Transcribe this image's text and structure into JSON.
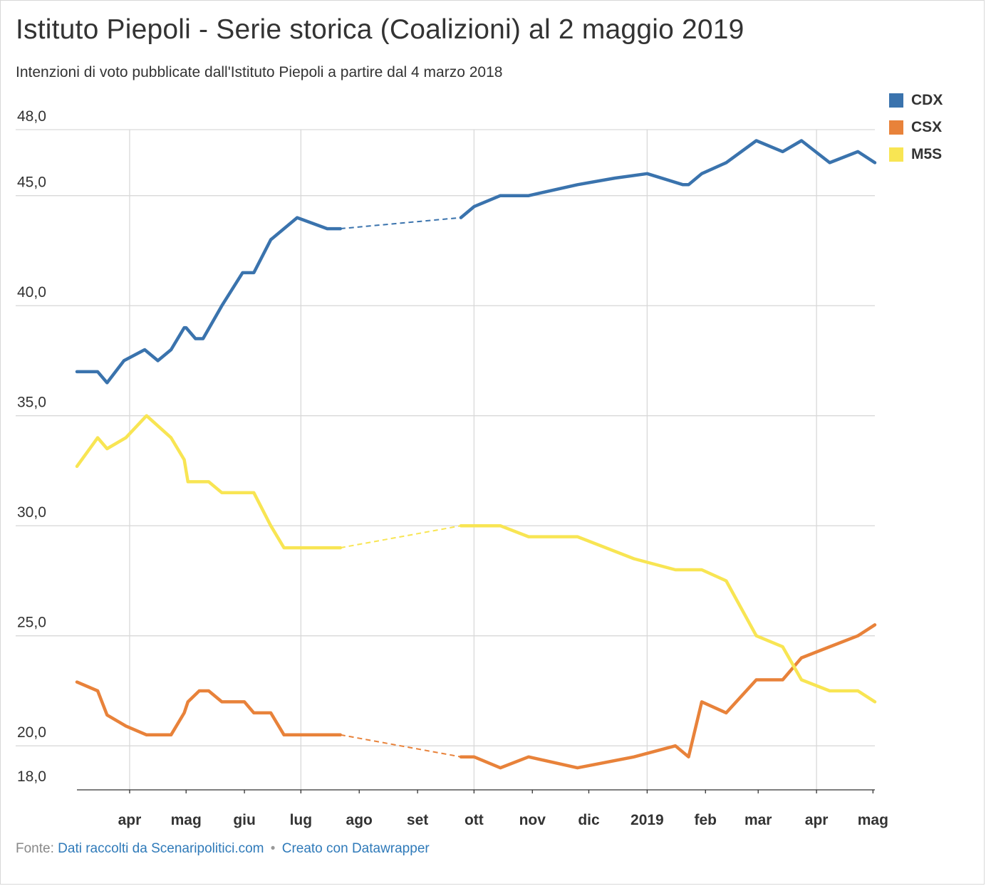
{
  "title": "Istituto Piepoli - Serie storica (Coalizioni) al 2 maggio 2019",
  "subtitle": "Intenzioni di voto pubblicate dall'Istituto Piepoli a partire dal 4 marzo 2018",
  "footer": {
    "prefix": "Fonte:",
    "source_link": "Dati raccolti da Scenaripolitici.com",
    "separator": "•",
    "credit_link": "Creato con Datawrapper"
  },
  "colors": {
    "CDX": "#3a73ad",
    "CSX": "#e8823a",
    "M5S": "#f8e553",
    "grid": "#d9d9d9"
  },
  "chart_data": {
    "type": "line",
    "title": "Istituto Piepoli - Serie storica (Coalizioni) al 2 maggio 2019",
    "xlabel": "",
    "ylabel": "",
    "xlim": [
      "2018-03-04",
      "2019-05-02"
    ],
    "ylim": [
      18,
      48
    ],
    "y_ticks": [
      {
        "value": 48,
        "label": "48,0"
      },
      {
        "value": 45,
        "label": "45,0"
      },
      {
        "value": 40,
        "label": "40,0"
      },
      {
        "value": 35,
        "label": "35,0"
      },
      {
        "value": 30,
        "label": "30,0"
      },
      {
        "value": 25,
        "label": "25,0"
      },
      {
        "value": 20,
        "label": "20,0"
      },
      {
        "value": 18,
        "label": "18,0"
      }
    ],
    "x_ticks": [
      {
        "date": "2018-04-01",
        "label": "apr",
        "grid": true
      },
      {
        "date": "2018-05-01",
        "label": "mag",
        "grid": false
      },
      {
        "date": "2018-06-01",
        "label": "giu",
        "grid": false
      },
      {
        "date": "2018-07-01",
        "label": "lug",
        "grid": true
      },
      {
        "date": "2018-08-01",
        "label": "ago",
        "grid": false
      },
      {
        "date": "2018-09-01",
        "label": "set",
        "grid": false
      },
      {
        "date": "2018-10-01",
        "label": "ott",
        "grid": true
      },
      {
        "date": "2018-11-01",
        "label": "nov",
        "grid": false
      },
      {
        "date": "2018-12-01",
        "label": "dic",
        "grid": false
      },
      {
        "date": "2019-01-01",
        "label": "2019",
        "grid": true
      },
      {
        "date": "2019-02-01",
        "label": "feb",
        "grid": false
      },
      {
        "date": "2019-03-01",
        "label": "mar",
        "grid": false
      },
      {
        "date": "2019-04-01",
        "label": "apr",
        "grid": true
      },
      {
        "date": "2019-05-01",
        "label": "mag",
        "grid": false
      }
    ],
    "gap": {
      "from": "2018-07-22",
      "to": "2018-09-24",
      "style": "dashed"
    },
    "legend_position": "top-right",
    "series": [
      {
        "name": "CDX",
        "color": "#3a73ad",
        "points": [
          [
            "2018-03-04",
            37.0
          ],
          [
            "2018-03-15",
            37.0
          ],
          [
            "2018-03-20",
            36.5
          ],
          [
            "2018-03-29",
            37.5
          ],
          [
            "2018-04-09",
            38.0
          ],
          [
            "2018-04-16",
            37.5
          ],
          [
            "2018-04-23",
            38.0
          ],
          [
            "2018-04-30",
            39.0
          ],
          [
            "2018-05-01",
            39.0
          ],
          [
            "2018-05-06",
            38.5
          ],
          [
            "2018-05-10",
            38.5
          ],
          [
            "2018-05-20",
            40.0
          ],
          [
            "2018-05-31",
            41.5
          ],
          [
            "2018-06-06",
            41.5
          ],
          [
            "2018-06-15",
            43.0
          ],
          [
            "2018-06-29",
            44.0
          ],
          [
            "2018-07-15",
            43.5
          ],
          [
            "2018-07-22",
            43.5
          ],
          [
            "2018-09-24",
            44.0
          ],
          [
            "2018-10-01",
            44.5
          ],
          [
            "2018-10-15",
            45.0
          ],
          [
            "2018-10-30",
            45.0
          ],
          [
            "2018-11-25",
            45.5
          ],
          [
            "2018-12-15",
            45.8
          ],
          [
            "2019-01-01",
            46.0
          ],
          [
            "2019-01-20",
            45.5
          ],
          [
            "2019-01-23",
            45.5
          ],
          [
            "2019-01-30",
            46.0
          ],
          [
            "2019-02-12",
            46.5
          ],
          [
            "2019-02-28",
            47.5
          ],
          [
            "2019-03-14",
            47.0
          ],
          [
            "2019-03-24",
            47.5
          ],
          [
            "2019-04-08",
            46.5
          ],
          [
            "2019-04-23",
            47.0
          ],
          [
            "2019-05-02",
            46.5
          ]
        ]
      },
      {
        "name": "CSX",
        "color": "#e8823a",
        "points": [
          [
            "2018-03-04",
            22.9
          ],
          [
            "2018-03-15",
            22.5
          ],
          [
            "2018-03-20",
            21.4
          ],
          [
            "2018-03-30",
            20.9
          ],
          [
            "2018-04-10",
            20.5
          ],
          [
            "2018-04-23",
            20.5
          ],
          [
            "2018-04-30",
            21.5
          ],
          [
            "2018-05-02",
            22.0
          ],
          [
            "2018-05-08",
            22.5
          ],
          [
            "2018-05-13",
            22.5
          ],
          [
            "2018-05-20",
            22.0
          ],
          [
            "2018-06-01",
            22.0
          ],
          [
            "2018-06-06",
            21.5
          ],
          [
            "2018-06-15",
            21.5
          ],
          [
            "2018-06-22",
            20.5
          ],
          [
            "2018-07-22",
            20.5
          ],
          [
            "2018-09-24",
            19.5
          ],
          [
            "2018-10-01",
            19.5
          ],
          [
            "2018-10-15",
            19.0
          ],
          [
            "2018-10-30",
            19.5
          ],
          [
            "2018-11-25",
            19.0
          ],
          [
            "2018-12-25",
            19.5
          ],
          [
            "2019-01-16",
            20.0
          ],
          [
            "2019-01-23",
            19.5
          ],
          [
            "2019-01-30",
            22.0
          ],
          [
            "2019-02-12",
            21.5
          ],
          [
            "2019-02-28",
            23.0
          ],
          [
            "2019-03-14",
            23.0
          ],
          [
            "2019-03-24",
            24.0
          ],
          [
            "2019-04-08",
            24.5
          ],
          [
            "2019-04-23",
            25.0
          ],
          [
            "2019-05-02",
            25.5
          ]
        ]
      },
      {
        "name": "M5S",
        "color": "#f8e553",
        "points": [
          [
            "2018-03-04",
            32.7
          ],
          [
            "2018-03-15",
            34.0
          ],
          [
            "2018-03-20",
            33.5
          ],
          [
            "2018-03-30",
            34.0
          ],
          [
            "2018-04-10",
            35.0
          ],
          [
            "2018-04-23",
            34.0
          ],
          [
            "2018-04-30",
            33.0
          ],
          [
            "2018-05-02",
            32.0
          ],
          [
            "2018-05-08",
            32.0
          ],
          [
            "2018-05-13",
            32.0
          ],
          [
            "2018-05-20",
            31.5
          ],
          [
            "2018-06-06",
            31.5
          ],
          [
            "2018-06-15",
            30.0
          ],
          [
            "2018-06-22",
            29.0
          ],
          [
            "2018-07-22",
            29.0
          ],
          [
            "2018-09-24",
            30.0
          ],
          [
            "2018-10-01",
            30.0
          ],
          [
            "2018-10-15",
            30.0
          ],
          [
            "2018-10-30",
            29.5
          ],
          [
            "2018-11-25",
            29.5
          ],
          [
            "2018-12-25",
            28.5
          ],
          [
            "2019-01-16",
            28.0
          ],
          [
            "2019-01-30",
            28.0
          ],
          [
            "2019-02-12",
            27.5
          ],
          [
            "2019-02-28",
            25.0
          ],
          [
            "2019-03-14",
            24.5
          ],
          [
            "2019-03-24",
            23.0
          ],
          [
            "2019-04-08",
            22.5
          ],
          [
            "2019-04-23",
            22.5
          ],
          [
            "2019-05-02",
            22.0
          ]
        ]
      }
    ]
  }
}
